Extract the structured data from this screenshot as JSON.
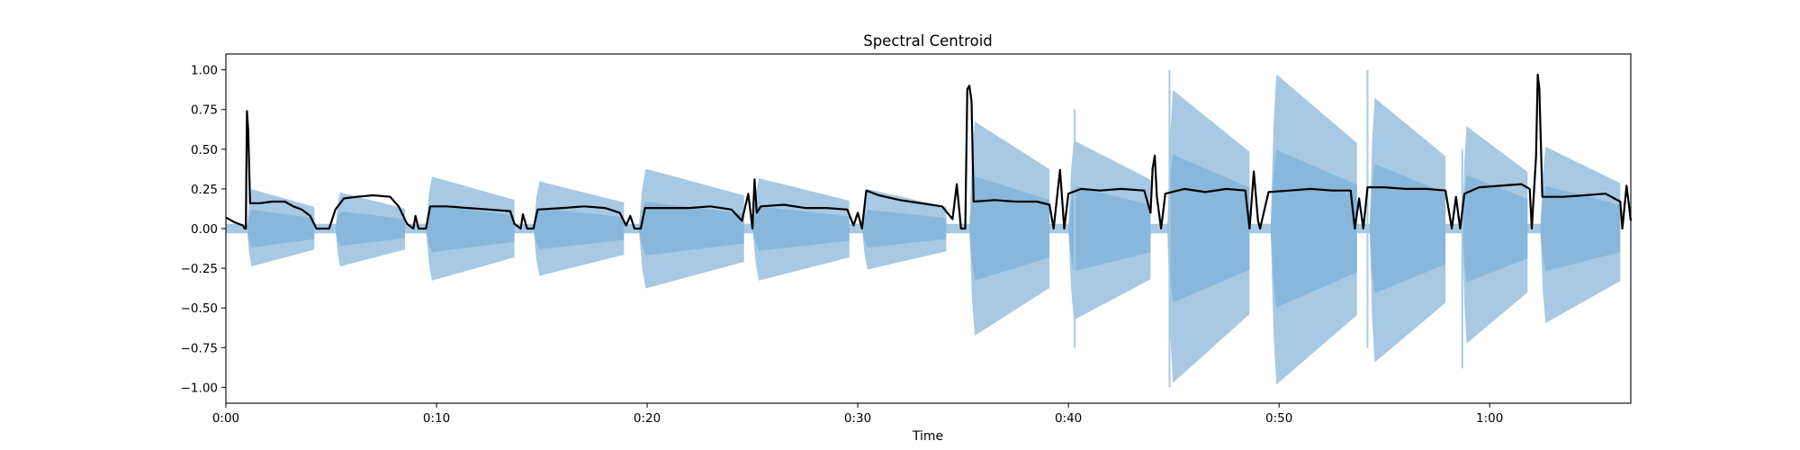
{
  "chart_data": {
    "type": "area",
    "title": "Spectral Centroid",
    "xlabel": "Time",
    "ylabel": "",
    "xlim": [
      0,
      66.7
    ],
    "ylim": [
      -1.1,
      1.1
    ],
    "x_ticks": [
      {
        "value": 0,
        "label": "0:00"
      },
      {
        "value": 10,
        "label": "0:10"
      },
      {
        "value": 20,
        "label": "0:20"
      },
      {
        "value": 30,
        "label": "0:30"
      },
      {
        "value": 40,
        "label": "0:40"
      },
      {
        "value": 50,
        "label": "0:50"
      },
      {
        "value": 60,
        "label": "1:00"
      }
    ],
    "y_ticks": [
      {
        "value": 1.0,
        "label": "1.00"
      },
      {
        "value": 0.75,
        "label": "0.75"
      },
      {
        "value": 0.5,
        "label": "0.50"
      },
      {
        "value": 0.25,
        "label": "0.25"
      },
      {
        "value": 0.0,
        "label": "0.00"
      },
      {
        "value": -0.25,
        "label": "−0.25"
      },
      {
        "value": -0.5,
        "label": "−0.50"
      },
      {
        "value": -0.75,
        "label": "−0.75"
      },
      {
        "value": -1.0,
        "label": "−1.00"
      }
    ],
    "grid": false,
    "colors": {
      "waveform": "#a7c9e3",
      "waveform_core": "#7eb0d8",
      "centroid": "#000000"
    },
    "series": [
      {
        "kind": "waveform-envelope",
        "notes": [
          {
            "start": 1.0,
            "end": 4.2,
            "peak": 0.25,
            "neg": 0.24,
            "core": 0.12
          },
          {
            "start": 5.2,
            "end": 8.5,
            "peak": 0.23,
            "neg": 0.24,
            "core": 0.11
          },
          {
            "start": 9.5,
            "end": 13.7,
            "peak": 0.33,
            "neg": 0.33,
            "core": 0.15
          },
          {
            "start": 14.6,
            "end": 18.9,
            "peak": 0.3,
            "neg": 0.3,
            "core": 0.13
          },
          {
            "start": 19.6,
            "end": 24.6,
            "peak": 0.38,
            "neg": 0.38,
            "core": 0.17
          },
          {
            "start": 25.0,
            "end": 29.6,
            "peak": 0.32,
            "neg": 0.33,
            "core": 0.14
          },
          {
            "start": 30.2,
            "end": 34.2,
            "peak": 0.25,
            "neg": 0.26,
            "core": 0.12
          },
          {
            "start": 35.3,
            "end": 39.1,
            "peak": 0.68,
            "neg": 0.68,
            "core": 0.33
          },
          {
            "start": 40.0,
            "end": 43.9,
            "peak": 0.56,
            "neg": 0.58,
            "core": 0.27
          },
          {
            "start": 44.7,
            "end": 48.6,
            "peak": 0.88,
            "neg": 0.98,
            "core": 0.47
          },
          {
            "start": 49.6,
            "end": 53.7,
            "peak": 0.98,
            "neg": 0.99,
            "core": 0.5
          },
          {
            "start": 54.3,
            "end": 57.9,
            "peak": 0.83,
            "neg": 0.85,
            "core": 0.41
          },
          {
            "start": 58.7,
            "end": 61.8,
            "peak": 0.65,
            "neg": 0.73,
            "core": 0.34
          },
          {
            "start": 62.4,
            "end": 66.2,
            "peak": 0.52,
            "neg": 0.6,
            "core": 0.27
          }
        ],
        "spikes": [
          {
            "x": 40.3,
            "min": -0.75,
            "max": 0.75
          },
          {
            "x": 44.8,
            "min": -1.0,
            "max": 1.0
          },
          {
            "x": 54.2,
            "min": -0.75,
            "max": 1.0
          },
          {
            "x": 58.7,
            "min": -0.88,
            "max": 0.5
          }
        ]
      },
      {
        "kind": "centroid",
        "points": [
          [
            0.0,
            0.07
          ],
          [
            0.4,
            0.04
          ],
          [
            0.8,
            0.02
          ],
          [
            0.9,
            0.0
          ],
          [
            0.95,
            0.0
          ],
          [
            0.97,
            0.35
          ],
          [
            1.0,
            0.74
          ],
          [
            1.06,
            0.62
          ],
          [
            1.15,
            0.16
          ],
          [
            1.6,
            0.16
          ],
          [
            2.2,
            0.17
          ],
          [
            2.8,
            0.17
          ],
          [
            3.2,
            0.14
          ],
          [
            3.6,
            0.12
          ],
          [
            4.0,
            0.08
          ],
          [
            4.3,
            0.0
          ],
          [
            4.9,
            0.0
          ],
          [
            5.2,
            0.12
          ],
          [
            5.6,
            0.19
          ],
          [
            6.2,
            0.2
          ],
          [
            7.0,
            0.21
          ],
          [
            7.8,
            0.2
          ],
          [
            8.2,
            0.14
          ],
          [
            8.6,
            0.03
          ],
          [
            8.9,
            0.0
          ],
          [
            9.0,
            0.08
          ],
          [
            9.15,
            0.0
          ],
          [
            9.5,
            0.0
          ],
          [
            9.7,
            0.14
          ],
          [
            10.5,
            0.14
          ],
          [
            11.5,
            0.13
          ],
          [
            12.5,
            0.12
          ],
          [
            13.5,
            0.11
          ],
          [
            13.7,
            0.03
          ],
          [
            14.0,
            0.0
          ],
          [
            14.1,
            0.09
          ],
          [
            14.3,
            0.0
          ],
          [
            14.6,
            0.0
          ],
          [
            14.8,
            0.12
          ],
          [
            16.0,
            0.13
          ],
          [
            17.0,
            0.14
          ],
          [
            18.0,
            0.13
          ],
          [
            18.7,
            0.1
          ],
          [
            19.0,
            0.02
          ],
          [
            19.2,
            0.08
          ],
          [
            19.4,
            0.0
          ],
          [
            19.7,
            0.0
          ],
          [
            19.9,
            0.13
          ],
          [
            21.0,
            0.13
          ],
          [
            22.0,
            0.13
          ],
          [
            23.0,
            0.14
          ],
          [
            24.0,
            0.12
          ],
          [
            24.5,
            0.05
          ],
          [
            24.8,
            0.22
          ],
          [
            25.0,
            0.0
          ],
          [
            25.1,
            0.31
          ],
          [
            25.2,
            0.1
          ],
          [
            25.4,
            0.14
          ],
          [
            26.5,
            0.15
          ],
          [
            27.5,
            0.13
          ],
          [
            28.5,
            0.13
          ],
          [
            29.5,
            0.12
          ],
          [
            29.8,
            0.02
          ],
          [
            30.0,
            0.1
          ],
          [
            30.2,
            0.0
          ],
          [
            30.4,
            0.24
          ],
          [
            31.0,
            0.21
          ],
          [
            32.0,
            0.18
          ],
          [
            33.0,
            0.16
          ],
          [
            34.0,
            0.14
          ],
          [
            34.5,
            0.06
          ],
          [
            34.7,
            0.28
          ],
          [
            34.9,
            0.0
          ],
          [
            35.1,
            0.0
          ],
          [
            35.2,
            0.88
          ],
          [
            35.3,
            0.9
          ],
          [
            35.4,
            0.8
          ],
          [
            35.5,
            0.17
          ],
          [
            36.5,
            0.18
          ],
          [
            37.5,
            0.17
          ],
          [
            38.5,
            0.17
          ],
          [
            39.1,
            0.15
          ],
          [
            39.3,
            0.0
          ],
          [
            39.6,
            0.37
          ],
          [
            39.8,
            0.0
          ],
          [
            40.0,
            0.22
          ],
          [
            40.6,
            0.25
          ],
          [
            41.5,
            0.24
          ],
          [
            42.5,
            0.25
          ],
          [
            43.6,
            0.24
          ],
          [
            43.9,
            0.1
          ],
          [
            44.0,
            0.38
          ],
          [
            44.1,
            0.46
          ],
          [
            44.2,
            0.2
          ],
          [
            44.4,
            0.0
          ],
          [
            44.6,
            0.22
          ],
          [
            45.5,
            0.25
          ],
          [
            46.5,
            0.23
          ],
          [
            47.5,
            0.25
          ],
          [
            48.4,
            0.24
          ],
          [
            48.6,
            0.0
          ],
          [
            48.8,
            0.36
          ],
          [
            49.0,
            0.05
          ],
          [
            49.1,
            0.0
          ],
          [
            49.5,
            0.23
          ],
          [
            50.5,
            0.24
          ],
          [
            51.5,
            0.25
          ],
          [
            52.5,
            0.24
          ],
          [
            53.4,
            0.24
          ],
          [
            53.6,
            0.0
          ],
          [
            53.8,
            0.19
          ],
          [
            54.0,
            0.0
          ],
          [
            54.2,
            0.26
          ],
          [
            55.0,
            0.26
          ],
          [
            56.0,
            0.25
          ],
          [
            57.0,
            0.25
          ],
          [
            57.9,
            0.24
          ],
          [
            58.2,
            0.0
          ],
          [
            58.4,
            0.2
          ],
          [
            58.6,
            0.0
          ],
          [
            58.8,
            0.22
          ],
          [
            59.5,
            0.26
          ],
          [
            60.5,
            0.27
          ],
          [
            61.5,
            0.28
          ],
          [
            61.9,
            0.25
          ],
          [
            62.0,
            0.0
          ],
          [
            62.2,
            0.45
          ],
          [
            62.28,
            0.97
          ],
          [
            62.36,
            0.88
          ],
          [
            62.5,
            0.2
          ],
          [
            63.5,
            0.2
          ],
          [
            64.5,
            0.21
          ],
          [
            65.5,
            0.22
          ],
          [
            66.2,
            0.17
          ],
          [
            66.3,
            0.0
          ],
          [
            66.5,
            0.27
          ],
          [
            66.7,
            0.05
          ]
        ]
      }
    ]
  }
}
